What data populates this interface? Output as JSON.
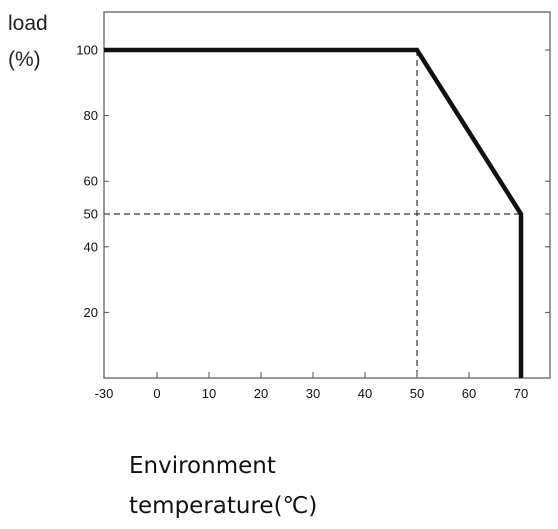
{
  "chart_data": {
    "type": "line",
    "ylabel_lines": [
      "load",
      "(%)"
    ],
    "xlabel_lines": [
      "Environment",
      "temperature(℃)"
    ],
    "x_ticks": [
      {
        "value": -30,
        "label": "-30"
      },
      {
        "value": 0,
        "label": "0"
      },
      {
        "value": 10,
        "label": "10"
      },
      {
        "value": 20,
        "label": "20"
      },
      {
        "value": 30,
        "label": "30"
      },
      {
        "value": 40,
        "label": "40"
      },
      {
        "value": 50,
        "label": "50"
      },
      {
        "value": 60,
        "label": "60"
      },
      {
        "value": 70,
        "label": "70"
      }
    ],
    "y_ticks": [
      {
        "value": 20,
        "label": "20"
      },
      {
        "value": 40,
        "label": "40"
      },
      {
        "value": 50,
        "label": "50"
      },
      {
        "value": 60,
        "label": "60"
      },
      {
        "value": 80,
        "label": "80"
      },
      {
        "value": 100,
        "label": "100"
      }
    ],
    "series": [
      {
        "color": "#111111",
        "points": [
          {
            "x": -30,
            "y": 100
          },
          {
            "x": 50,
            "y": 100
          },
          {
            "x": 70,
            "y": 50
          },
          {
            "x": 70,
            "y": 0
          }
        ]
      }
    ],
    "reference_lines": [
      {
        "orientation": "vertical",
        "value": 50,
        "from": 0,
        "to": 100,
        "style": "dashed"
      },
      {
        "orientation": "horizontal",
        "value": 50,
        "from": -30,
        "to": 70,
        "style": "dashed"
      }
    ],
    "xlim": [
      -30,
      70
    ],
    "ylim": [
      0,
      110
    ],
    "grid": false,
    "legend": "none"
  }
}
